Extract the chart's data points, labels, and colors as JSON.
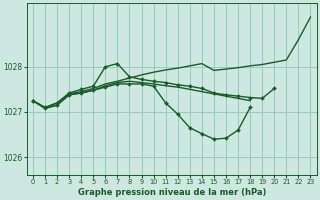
{
  "background_color": "#cce8e0",
  "grid_color": "#99ccbb",
  "line_color": "#1a5c2a",
  "marker_color": "#1a5c2a",
  "title": "Graphe pression niveau de la mer (hPa)",
  "ylim": [
    1025.6,
    1029.4
  ],
  "yticks": [
    1026,
    1027,
    1028
  ],
  "xlim": [
    -0.5,
    23.5
  ],
  "xticks": [
    0,
    1,
    2,
    3,
    4,
    5,
    6,
    7,
    8,
    9,
    10,
    11,
    12,
    13,
    14,
    15,
    16,
    17,
    18,
    19,
    20,
    21,
    22,
    23
  ],
  "series": [
    {
      "y": [
        1027.25,
        1027.1,
        1027.2,
        1027.4,
        1027.45,
        1027.52,
        1027.62,
        1027.68,
        1027.75,
        1027.82,
        1027.88,
        1027.93,
        1027.97,
        1028.02,
        1028.07,
        1027.92,
        1027.95,
        1027.98,
        1028.02,
        1028.05,
        1028.1,
        1028.15,
        1028.6,
        1029.1
      ],
      "marker": false,
      "lw": 1.0
    },
    {
      "y": [
        1027.25,
        1027.1,
        1027.2,
        1027.42,
        1027.5,
        1027.57,
        1028.0,
        1028.07,
        1027.78,
        1027.72,
        1027.68,
        1027.65,
        1027.6,
        1027.57,
        1027.52,
        1027.42,
        1027.38,
        1027.35,
        1027.32,
        1027.3,
        1027.52,
        null,
        null,
        null
      ],
      "marker": true,
      "lw": 1.0
    },
    {
      "y": [
        1027.25,
        1027.08,
        1027.15,
        1027.38,
        1027.42,
        1027.48,
        1027.55,
        1027.62,
        1027.62,
        1027.62,
        1027.57,
        1027.2,
        1026.95,
        1026.65,
        1026.52,
        1026.4,
        1026.42,
        1026.6,
        1027.1,
        null,
        null,
        null,
        null,
        null
      ],
      "marker": true,
      "lw": 1.0
    },
    {
      "y": [
        1027.25,
        1027.08,
        1027.15,
        1027.38,
        1027.42,
        1027.48,
        1027.58,
        1027.65,
        1027.68,
        1027.65,
        1027.62,
        1027.58,
        1027.55,
        1027.5,
        1027.45,
        1027.4,
        1027.35,
        1027.3,
        1027.25,
        null,
        null,
        null,
        null,
        null
      ],
      "marker": false,
      "lw": 1.0
    }
  ]
}
